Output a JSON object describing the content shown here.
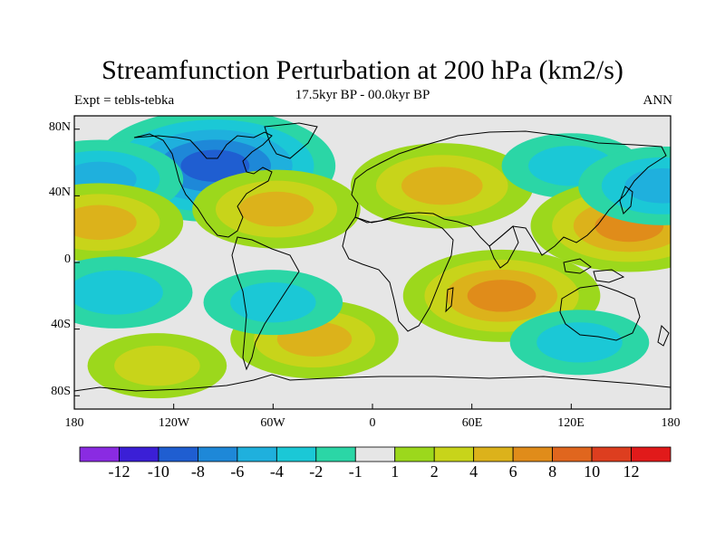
{
  "title": "Streamfunction Perturbation at 200 hPa (km2/s)",
  "subtitle_left": "Expt = tebls-tebka",
  "subtitle_center": "17.5kyr BP - 00.0kyr BP",
  "subtitle_right": "ANN",
  "lat_labels": [
    "80N",
    "40N",
    "0",
    "40S",
    "80S"
  ],
  "lon_labels": [
    "180",
    "120W",
    "60W",
    "0",
    "60E",
    "120E",
    "180"
  ],
  "colorbar": {
    "labels": [
      "-12",
      "-10",
      "-8",
      "-6",
      "-4",
      "-2",
      "-1",
      "1",
      "2",
      "4",
      "6",
      "8",
      "10",
      "12"
    ],
    "colors": [
      "#8a2be2",
      "#3b1fd6",
      "#1f5ed1",
      "#1e88d8",
      "#1fb0dd",
      "#1bc8d6",
      "#2bd6a6",
      "#e6e6e6",
      "#9cd81c",
      "#c8d41a",
      "#dcb21b",
      "#e08c1a",
      "#e0661e",
      "#dd3e1f",
      "#e11a1a"
    ]
  },
  "field_anomalies": [
    {
      "name": "northeast-canada-low",
      "lon": -95,
      "lat": 58,
      "value": -9
    },
    {
      "name": "gulf-of-alaska-low",
      "lon": -165,
      "lat": 50,
      "value": -4
    },
    {
      "name": "n-pacific-subtropical-high",
      "lon": -165,
      "lat": 24,
      "value": 4
    },
    {
      "name": "w-atlantic-high",
      "lon": -58,
      "lat": 32,
      "value": 4
    },
    {
      "name": "eurasia-high",
      "lon": 42,
      "lat": 46,
      "value": 5
    },
    {
      "name": "e-asia-low",
      "lon": 120,
      "lat": 58,
      "value": -2
    },
    {
      "name": "w-pacific-high",
      "lon": 155,
      "lat": 22,
      "value": 6
    },
    {
      "name": "n-pacific-east-low",
      "lon": 175,
      "lat": 46,
      "value": -4
    },
    {
      "name": "s-indian-ocean-high",
      "lon": 78,
      "lat": -20,
      "value": 6
    },
    {
      "name": "se-pacific-low",
      "lon": -155,
      "lat": -18,
      "value": -3
    },
    {
      "name": "s-atlantic-high",
      "lon": -35,
      "lat": -46,
      "value": 4
    },
    {
      "name": "south-america-low",
      "lon": -60,
      "lat": -24,
      "value": -2
    },
    {
      "name": "s-pacific-high",
      "lon": -130,
      "lat": -62,
      "value": 2
    },
    {
      "name": "s-indian-low",
      "lon": 125,
      "lat": -48,
      "value": -2
    }
  ]
}
